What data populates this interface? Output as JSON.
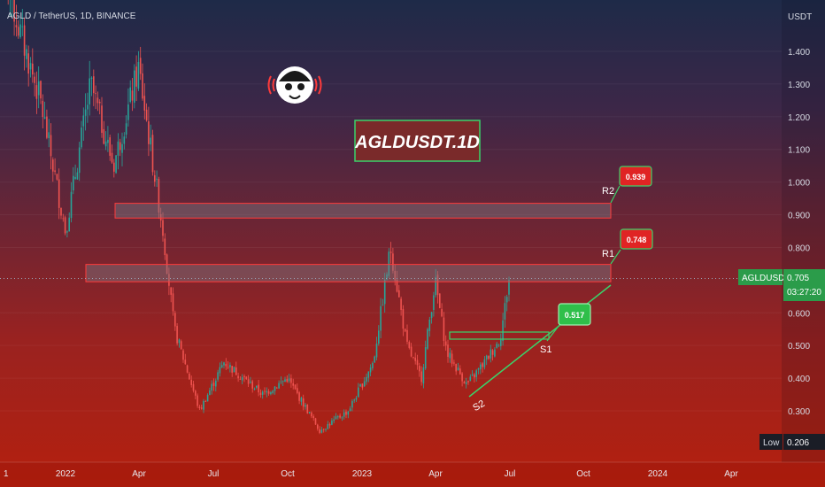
{
  "header": {
    "symbol_title": "AGLD / TetherUS, 1D, BINANCE"
  },
  "watermark": {
    "text": "AGLDUSDT.1D"
  },
  "price_scale": {
    "currency": "USDT",
    "ticks": [
      "1.400",
      "1.300",
      "1.200",
      "1.100",
      "1.000",
      "0.900",
      "0.800",
      "0.600",
      "0.500",
      "0.400",
      "0.300"
    ],
    "last_symbol": "AGLDUSDT",
    "last_price": "0.705",
    "countdown": "03:27:20",
    "low_label": "Low",
    "low_value": "0.206"
  },
  "time_axis": [
    "1",
    "2022",
    "Apr",
    "Jul",
    "Oct",
    "2023",
    "Apr",
    "Jul",
    "Oct",
    "2024",
    "Apr"
  ],
  "levels": {
    "r2": {
      "label": "R2",
      "price": "0.939",
      "zone": [
        0.89,
        0.935
      ]
    },
    "r1": {
      "label": "R1",
      "price": "0.748",
      "zone": [
        0.695,
        0.748
      ]
    },
    "s1": {
      "label": "S1",
      "price": "0.517"
    },
    "s2": {
      "label": "S2"
    }
  },
  "colors": {
    "candle_up": "#26a69a",
    "candle_down": "#ef5350",
    "zone_border": "#ff3b3b",
    "accent_green": "#2fbf4a",
    "badge_red": "#e02424"
  },
  "chart_data": {
    "type": "candlestick",
    "title": "AGLD / TetherUS, 1D, BINANCE",
    "y_unit": "USDT",
    "ylim": [
      0.206,
      1.5
    ],
    "x_range": [
      "2021-10",
      "2024-06"
    ],
    "price_path": [
      {
        "x": "2021-10-06",
        "y": 1.8
      },
      {
        "x": "2021-11-01",
        "y": 1.5
      },
      {
        "x": "2021-12-01",
        "y": 1.25
      },
      {
        "x": "2022-01-01",
        "y": 0.85
      },
      {
        "x": "2022-02-01",
        "y": 1.3
      },
      {
        "x": "2022-03-01",
        "y": 1.05
      },
      {
        "x": "2022-04-01",
        "y": 1.35
      },
      {
        "x": "2022-05-01",
        "y": 0.85
      },
      {
        "x": "2022-05-15",
        "y": 0.55
      },
      {
        "x": "2022-06-15",
        "y": 0.3
      },
      {
        "x": "2022-07-15",
        "y": 0.45
      },
      {
        "x": "2022-09-01",
        "y": 0.35
      },
      {
        "x": "2022-10-01",
        "y": 0.4
      },
      {
        "x": "2022-11-10",
        "y": 0.24
      },
      {
        "x": "2022-12-15",
        "y": 0.3
      },
      {
        "x": "2023-01-15",
        "y": 0.45
      },
      {
        "x": "2023-02-05",
        "y": 0.8
      },
      {
        "x": "2023-02-25",
        "y": 0.5
      },
      {
        "x": "2023-03-15",
        "y": 0.4
      },
      {
        "x": "2023-04-01",
        "y": 0.7
      },
      {
        "x": "2023-04-15",
        "y": 0.48
      },
      {
        "x": "2023-05-10",
        "y": 0.38
      },
      {
        "x": "2023-06-01",
        "y": 0.45
      },
      {
        "x": "2023-06-20",
        "y": 0.52
      },
      {
        "x": "2023-07-01",
        "y": 0.705
      }
    ],
    "last_price": 0.705,
    "low": 0.206,
    "levels": [
      {
        "name": "R2",
        "price": 0.939
      },
      {
        "name": "R1",
        "price": 0.748
      },
      {
        "name": "S1",
        "price": 0.517
      }
    ]
  }
}
